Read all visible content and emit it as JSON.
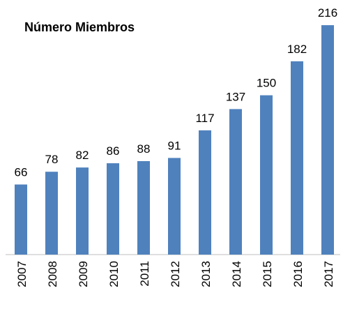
{
  "chart_data": {
    "type": "bar",
    "title": "Número Miembros",
    "categories": [
      "2007",
      "2008",
      "2009",
      "2010",
      "2011",
      "2012",
      "2013",
      "2014",
      "2015",
      "2016",
      "2017"
    ],
    "values": [
      66,
      78,
      82,
      86,
      88,
      91,
      117,
      137,
      150,
      182,
      216
    ],
    "color": "#4f81bd",
    "ylim": [
      0,
      220
    ]
  }
}
